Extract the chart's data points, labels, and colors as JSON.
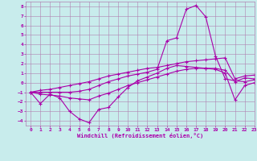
{
  "xlabel": "Windchill (Refroidissement éolien,°C)",
  "bg_color": "#c8ecec",
  "grid_color": "#b080b0",
  "line_color": "#aa00aa",
  "x_data": [
    0,
    1,
    2,
    3,
    4,
    5,
    6,
    7,
    8,
    9,
    10,
    11,
    12,
    13,
    14,
    15,
    16,
    17,
    18,
    19,
    20,
    21,
    22,
    23
  ],
  "series1": [
    -1.0,
    -2.2,
    -1.2,
    -1.6,
    -3.0,
    -3.8,
    -4.2,
    -2.8,
    -2.6,
    -1.5,
    -0.5,
    0.2,
    0.6,
    1.0,
    1.5,
    1.8,
    1.7,
    1.6,
    1.5,
    1.4,
    1.0,
    -1.8,
    -0.3,
    0.0
  ],
  "series2": [
    -1.0,
    -1.2,
    -1.3,
    -1.4,
    -1.6,
    -1.7,
    -1.8,
    -1.4,
    -1.1,
    -0.7,
    -0.3,
    0.0,
    0.3,
    0.6,
    0.9,
    1.2,
    1.4,
    1.5,
    1.5,
    1.5,
    1.3,
    0.1,
    0.5,
    0.4
  ],
  "series3": [
    -1.0,
    -1.0,
    -1.0,
    -1.0,
    -1.0,
    -0.9,
    -0.7,
    -0.3,
    0.1,
    0.4,
    0.7,
    0.9,
    1.1,
    1.4,
    4.4,
    4.7,
    7.7,
    8.1,
    6.9,
    2.8,
    0.4,
    0.2,
    0.1,
    0.3
  ],
  "series4": [
    -1.0,
    -0.8,
    -0.7,
    -0.5,
    -0.3,
    -0.1,
    0.1,
    0.4,
    0.7,
    0.9,
    1.1,
    1.3,
    1.5,
    1.6,
    1.8,
    2.0,
    2.2,
    2.3,
    2.4,
    2.5,
    2.6,
    0.4,
    0.7,
    0.8
  ],
  "ylim": [
    -4.5,
    8.5
  ],
  "xlim": [
    -0.5,
    23
  ],
  "yticks": [
    -4,
    -3,
    -2,
    -1,
    0,
    1,
    2,
    3,
    4,
    5,
    6,
    7,
    8
  ],
  "xticks": [
    0,
    1,
    2,
    3,
    4,
    5,
    6,
    7,
    8,
    9,
    10,
    11,
    12,
    13,
    14,
    15,
    16,
    17,
    18,
    19,
    20,
    21,
    22,
    23
  ]
}
